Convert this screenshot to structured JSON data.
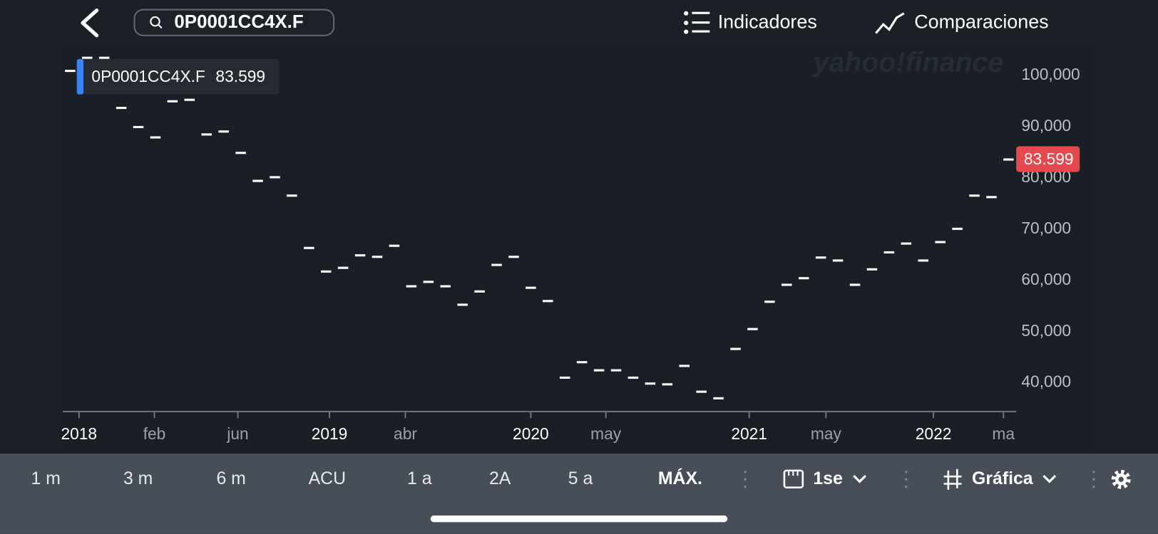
{
  "header": {
    "search": "0P0001CC4X.F",
    "indicators": "Indicadores",
    "comparisons": "Comparaciones"
  },
  "watermark": "yahoo!finance",
  "tooltip": {
    "value": "83.599"
  },
  "toolbar": {
    "ranges": [
      "1 m",
      "3 m",
      "6 m",
      "ACU",
      "1 a",
      "2A",
      "5 a",
      "MÁX."
    ],
    "interval": "1se",
    "chart_type": "Gráfica"
  },
  "chart_data": {
    "type": "scatter",
    "x": [
      0,
      1,
      2,
      3,
      4,
      5,
      6,
      7,
      8,
      9,
      10,
      11,
      12,
      13,
      14,
      15,
      16,
      17,
      18,
      19,
      20,
      21,
      22,
      23,
      24,
      25,
      26,
      27,
      28,
      29,
      30,
      31,
      32,
      33,
      34,
      35,
      36,
      37,
      38,
      39,
      40,
      41,
      42,
      43,
      44,
      45,
      46,
      47,
      48,
      49,
      50,
      51,
      52,
      53,
      54,
      55
    ],
    "series": [
      {
        "name": "0P0001CC4X.F",
        "color": "#ffffff",
        "values": [
          100900,
          103450,
          103450,
          93670,
          89930,
          87910,
          94960,
          95250,
          88490,
          89060,
          84890,
          79420,
          80140,
          76550,
          66330,
          61730,
          62450,
          64890,
          64600,
          66760,
          58850,
          59710,
          58850,
          55250,
          57840,
          63020,
          64600,
          58560,
          55970,
          41010,
          44030,
          42450,
          42450,
          41010,
          39860,
          39710,
          43310,
          38270,
          36980,
          46620,
          50500,
          55830,
          59140,
          60430,
          64460,
          63880,
          59140,
          62160,
          65470,
          67190,
          63880,
          67480,
          70070,
          76550,
          76260,
          83599
        ]
      }
    ],
    "price_badge": {
      "value": 83599,
      "label": "83.599"
    },
    "xlim": [
      -0.43,
      55.45
    ],
    "xticks": [
      {
        "value": 0.52,
        "label": "2018"
      },
      {
        "value": 4.94,
        "label": "feb"
      },
      {
        "value": 9.83,
        "label": "jun"
      },
      {
        "value": 15.2,
        "label": "2019"
      },
      {
        "value": 19.65,
        "label": "abr"
      },
      {
        "value": 27.0,
        "label": "2020"
      },
      {
        "value": 31.4,
        "label": "may"
      },
      {
        "value": 39.8,
        "label": "2021"
      },
      {
        "value": 44.3,
        "label": "may"
      },
      {
        "value": 50.6,
        "label": "2022"
      },
      {
        "value": 54.7,
        "label": "ma"
      }
    ],
    "ylim": [
      34400,
      105800
    ],
    "yticks": [
      {
        "value": 40000,
        "label": "40,000"
      },
      {
        "value": 50000,
        "label": "50,000"
      },
      {
        "value": 60000,
        "label": "60,000"
      },
      {
        "value": 70000,
        "label": "70,000"
      },
      {
        "value": 80000,
        "label": "80,000"
      },
      {
        "value": 90000,
        "label": "90,000"
      },
      {
        "value": 100000,
        "label": "100,000"
      }
    ]
  }
}
